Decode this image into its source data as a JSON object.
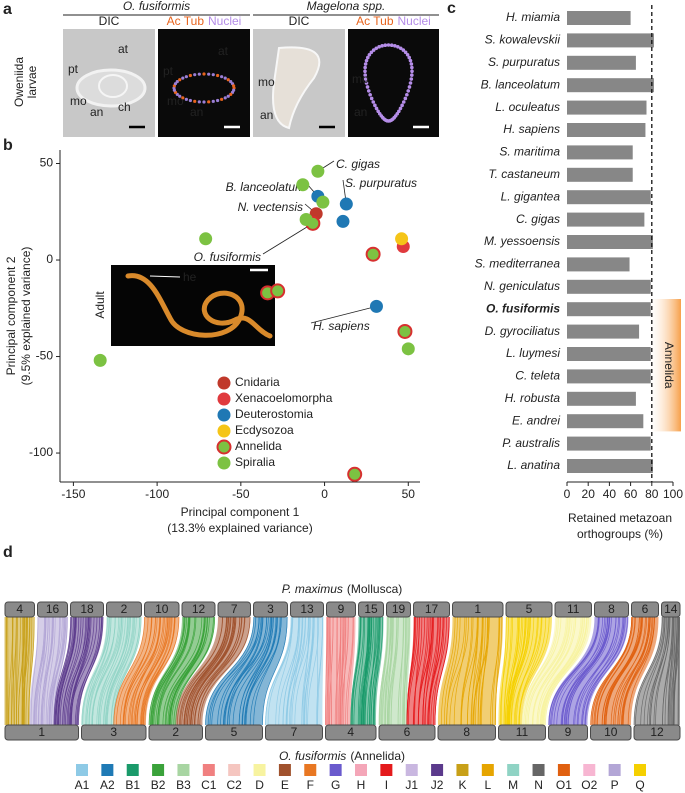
{
  "panel_a": {
    "label": "a",
    "row_label": [
      "Oweniida",
      "larvae"
    ],
    "groups": [
      {
        "title": "O. fusiformis",
        "images": [
          {
            "caption": [
              {
                "text": "DIC",
                "color": "#222222"
              }
            ],
            "annotations": [
              "at",
              "pt",
              "mo",
              "an",
              "ch"
            ]
          },
          {
            "caption": [
              {
                "text": "Ac Tub",
                "color": "#e8641e"
              },
              {
                "text": "Nuclei",
                "color": "#b58de8"
              }
            ],
            "annotations": [
              "at",
              "pt",
              "mo",
              "an"
            ]
          }
        ]
      },
      {
        "title": "Magelona spp.",
        "images": [
          {
            "caption": [
              {
                "text": "DIC",
                "color": "#222222"
              }
            ],
            "annotations": [
              "mo",
              "an"
            ]
          },
          {
            "caption": [
              {
                "text": "Ac Tub",
                "color": "#e8641e"
              },
              {
                "text": "Nuclei",
                "color": "#b58de8"
              }
            ],
            "annotations": [
              "mo",
              "an"
            ]
          }
        ]
      }
    ]
  },
  "chart_data": [
    {
      "type": "scatter",
      "label": "b",
      "x_label": [
        "Principal component 1",
        "(13.3% explained variance)"
      ],
      "y_label": [
        "Principal component 2",
        "(9.5% explained variance)"
      ],
      "xlim": [
        -158,
        57
      ],
      "ylim": [
        -115,
        57
      ],
      "xticks": [
        -150,
        -100,
        -50,
        0,
        50
      ],
      "yticks": [
        -100,
        -50,
        0,
        50
      ],
      "series": [
        {
          "name": "Cnidaria",
          "color": "#c0392b",
          "x": [
            -5
          ],
          "values": [
            24
          ]
        },
        {
          "name": "Xenacoelomorpha",
          "color": "#e03a3e",
          "x": [
            47
          ],
          "values": [
            7
          ]
        },
        {
          "name": "Deuterostomia",
          "color": "#1f78b4",
          "x": [
            -4,
            13,
            11,
            31
          ],
          "values": [
            33,
            29,
            20,
            -24
          ]
        },
        {
          "name": "Ecdysozoa",
          "color": "#f5c518",
          "x": [
            46
          ],
          "values": [
            11
          ]
        },
        {
          "name": "Annelida",
          "color": "#7cc242",
          "edge": "#d7302f",
          "x": [
            -7,
            29,
            -34,
            -28,
            48,
            18
          ],
          "values": [
            19,
            3,
            -17,
            -16,
            -37,
            -111
          ]
        },
        {
          "name": "Spiralia",
          "color": "#7cc242",
          "x": [
            -4,
            -13,
            -1,
            -11,
            -71,
            50,
            -134
          ],
          "values": [
            46,
            39,
            30,
            21,
            11,
            -46,
            -52
          ]
        }
      ],
      "annotations": [
        "C. gigas",
        "B. lanceolatum",
        "S. purpuratus",
        "N. vectensis",
        "O. fusiformis",
        "H. sapiens"
      ],
      "inset": {
        "label": "Adult",
        "annotation": "he"
      }
    },
    {
      "type": "barh",
      "label": "c",
      "categories": [
        "H. miamia",
        "S. kowalevskii",
        "S. purpuratus",
        "B. lanceolatum",
        "L. oculeatus",
        "H. sapiens",
        "S. maritima",
        "T. castaneum",
        "L. gigantea",
        "C. gigas",
        "M. yessoensis",
        "S. mediterranea",
        "N. geniculatus",
        "O. fusiformis",
        "D. gyrociliatus",
        "L. luymesi",
        "C. teleta",
        "H. robusta",
        "E. andrei",
        "P. australis",
        "L. anatina"
      ],
      "values": [
        60,
        82,
        65,
        82,
        75,
        74,
        62,
        62,
        79,
        73,
        81,
        59,
        79,
        79,
        68,
        79,
        79,
        65,
        72,
        79,
        81
      ],
      "color": "#878787",
      "bold_categories": [
        13
      ],
      "xlim": [
        0,
        100
      ],
      "xticks": [
        0,
        20,
        40,
        60,
        80,
        100
      ],
      "reference_line": 80,
      "x_label": [
        "Retained metazoan",
        "orthogroups (%)"
      ],
      "group": {
        "label": "Annelida",
        "from": 13,
        "to": 18,
        "color": "#f7a04a"
      }
    }
  ],
  "panel_d": {
    "label": "d",
    "top_title": {
      "species": "P. maximus",
      "clade": "(Mollusca)"
    },
    "bottom_title": {
      "species": "O. fusiformis",
      "clade": "(Annelida)"
    },
    "top_chromosomes": [
      "4",
      "16",
      "18",
      "2",
      "10",
      "12",
      "7",
      "3",
      "13",
      "9",
      "15",
      "19",
      "17",
      "1",
      "5",
      "11",
      "8",
      "6",
      "14"
    ],
    "bottom_chromosomes": [
      "1",
      "3",
      "2",
      "5",
      "7",
      "4",
      "6",
      "8",
      "11",
      "9",
      "10",
      "12"
    ],
    "links": [
      {
        "top": "4",
        "bottom": "1",
        "group": "K"
      },
      {
        "top": "16",
        "bottom": "1",
        "group": "P"
      },
      {
        "top": "18",
        "bottom": "1",
        "group": "J2"
      },
      {
        "top": "2",
        "bottom": "3",
        "group": "M"
      },
      {
        "top": "10",
        "bottom": "3",
        "group": "F"
      },
      {
        "top": "12",
        "bottom": "2",
        "group": "B2"
      },
      {
        "top": "7",
        "bottom": "2",
        "group": "E"
      },
      {
        "top": "3",
        "bottom": "5",
        "group": "A2"
      },
      {
        "top": "13",
        "bottom": "7",
        "group": "A1"
      },
      {
        "top": "9",
        "bottom": "4",
        "group": "C1"
      },
      {
        "top": "15",
        "bottom": "4",
        "group": "B1"
      },
      {
        "top": "19",
        "bottom": "6",
        "group": "B3"
      },
      {
        "top": "17",
        "bottom": "6",
        "group": "I"
      },
      {
        "top": "1",
        "bottom": "8",
        "group": "L"
      },
      {
        "top": "5",
        "bottom": "11",
        "group": "Q"
      },
      {
        "top": "11",
        "bottom": "11",
        "group": "D"
      },
      {
        "top": "8",
        "bottom": "9",
        "group": "G"
      },
      {
        "top": "6",
        "bottom": "10",
        "group": "O1"
      },
      {
        "top": "14",
        "bottom": "12",
        "group": "N"
      }
    ],
    "groups": [
      {
        "name": "A1",
        "color": "#8ecae6"
      },
      {
        "name": "A2",
        "color": "#1f7ab5"
      },
      {
        "name": "B1",
        "color": "#1a9a6a"
      },
      {
        "name": "B2",
        "color": "#3aa23a"
      },
      {
        "name": "B3",
        "color": "#a8d5a2"
      },
      {
        "name": "C1",
        "color": "#f08080"
      },
      {
        "name": "C2",
        "color": "#f5c6c0"
      },
      {
        "name": "D",
        "color": "#f7f3a0"
      },
      {
        "name": "E",
        "color": "#a0522d"
      },
      {
        "name": "F",
        "color": "#e87722"
      },
      {
        "name": "G",
        "color": "#6a5acd"
      },
      {
        "name": "H",
        "color": "#f4a6b8"
      },
      {
        "name": "I",
        "color": "#e41a1c"
      },
      {
        "name": "J1",
        "color": "#c9b7e0"
      },
      {
        "name": "J2",
        "color": "#5b3a8c"
      },
      {
        "name": "K",
        "color": "#c8a018"
      },
      {
        "name": "L",
        "color": "#e6a500"
      },
      {
        "name": "M",
        "color": "#8fd3c4"
      },
      {
        "name": "N",
        "color": "#666666"
      },
      {
        "name": "O1",
        "color": "#e06010"
      },
      {
        "name": "O2",
        "color": "#f7b6d2"
      },
      {
        "name": "P",
        "color": "#b3a6d6"
      },
      {
        "name": "Q",
        "color": "#f5d000"
      }
    ]
  }
}
